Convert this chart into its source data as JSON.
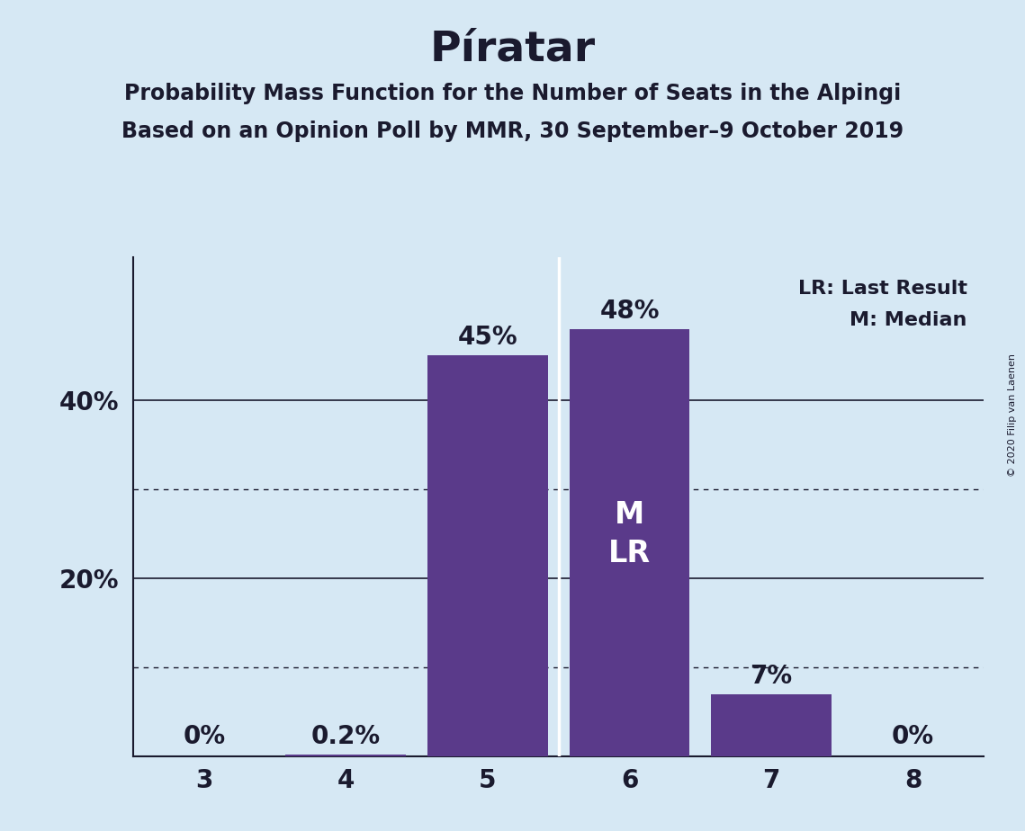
{
  "title": "Píratar",
  "subtitle1": "Probability Mass Function for the Number of Seats in the Alpingi",
  "subtitle2": "Based on an Opinion Poll by MMR, 30 September–9 October 2019",
  "copyright": "© 2020 Filip van Laenen",
  "categories": [
    3,
    4,
    5,
    6,
    7,
    8
  ],
  "values": [
    0.0,
    0.002,
    0.45,
    0.48,
    0.07,
    0.0
  ],
  "bar_color": "#5a3a8a",
  "background_color": "#d6e8f4",
  "bar_labels": [
    "0%",
    "0.2%",
    "45%",
    "48%",
    "7%",
    "0%"
  ],
  "median_bar_idx": 3,
  "ylim": [
    0,
    0.56
  ],
  "yticks": [
    0.0,
    0.2,
    0.4
  ],
  "ytick_labels": [
    "",
    "20%",
    "40%"
  ],
  "dotted_gridlines": [
    0.1,
    0.3
  ],
  "solid_gridlines": [
    0.2,
    0.4
  ],
  "legend_lr": "LR: Last Result",
  "legend_m": "M: Median",
  "title_fontsize": 34,
  "subtitle_fontsize": 17,
  "bar_label_fontsize": 20,
  "ytick_fontsize": 20,
  "xtick_fontsize": 20,
  "legend_fontsize": 16
}
